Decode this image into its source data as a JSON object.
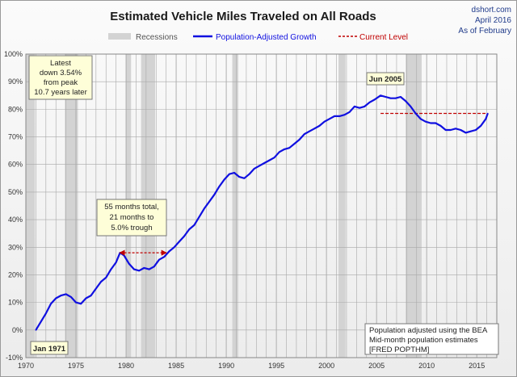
{
  "source": {
    "site": "dshort.com",
    "date": "April 2016",
    "as_of": "As of February"
  },
  "chart_data": {
    "type": "line",
    "title": "Estimated Vehicle Miles Traveled on All Roads",
    "xlabel": "",
    "ylabel": "",
    "xlim": [
      1970,
      2017
    ],
    "ylim": [
      -10,
      100
    ],
    "y_ticks": [
      -10,
      0,
      10,
      20,
      30,
      40,
      50,
      60,
      70,
      80,
      90,
      100
    ],
    "y_tick_labels": [
      "-10%",
      "0%",
      "10%",
      "20%",
      "30%",
      "40%",
      "50%",
      "60%",
      "70%",
      "80%",
      "90%",
      "100%"
    ],
    "x_ticks": [
      1970,
      1975,
      1980,
      1985,
      1990,
      1995,
      2000,
      2005,
      2010,
      2015
    ],
    "x_tick_labels": [
      "1970",
      "1975",
      "1980",
      "1985",
      "1990",
      "1995",
      "2000",
      "2005",
      "2010",
      "2015"
    ],
    "grid": true,
    "legend": {
      "placement": "top",
      "entries": [
        {
          "label": "Recessions",
          "color": "#d3d3d3",
          "style": "band"
        },
        {
          "label": "Population-Adjusted Growth",
          "color": "#1010e0",
          "style": "line"
        },
        {
          "label": "Current Level",
          "color": "#c00000",
          "style": "dashed"
        }
      ]
    },
    "recessions": [
      [
        1970.0,
        1970.9
      ],
      [
        1973.9,
        1975.2
      ],
      [
        1980.0,
        1980.5
      ],
      [
        1981.5,
        1982.9
      ],
      [
        1990.6,
        1991.2
      ],
      [
        2001.2,
        2001.9
      ],
      [
        2007.9,
        2009.5
      ]
    ],
    "series": [
      {
        "name": "Population-Adjusted Growth",
        "color": "#1010e0",
        "x": [
          1971.0,
          1971.5,
          1972.0,
          1972.5,
          1973.0,
          1973.5,
          1974.0,
          1974.5,
          1975.0,
          1975.5,
          1976.0,
          1976.5,
          1977.0,
          1977.5,
          1978.0,
          1978.5,
          1979.0,
          1979.4,
          1979.8,
          1980.3,
          1980.8,
          1981.3,
          1981.8,
          1982.3,
          1982.8,
          1983.3,
          1983.8,
          1984.3,
          1984.8,
          1985.3,
          1985.8,
          1986.3,
          1986.8,
          1987.3,
          1987.8,
          1988.3,
          1988.8,
          1989.3,
          1989.8,
          1990.3,
          1990.8,
          1991.3,
          1991.8,
          1992.3,
          1992.8,
          1993.3,
          1993.8,
          1994.3,
          1994.8,
          1995.3,
          1995.8,
          1996.3,
          1996.8,
          1997.3,
          1997.8,
          1998.3,
          1998.8,
          1999.3,
          1999.8,
          2000.3,
          2000.8,
          2001.3,
          2001.8,
          2002.3,
          2002.8,
          2003.3,
          2003.8,
          2004.3,
          2004.8,
          2005.4,
          2005.9,
          2006.4,
          2006.9,
          2007.4,
          2007.9,
          2008.4,
          2008.9,
          2009.4,
          2009.9,
          2010.4,
          2010.9,
          2011.4,
          2011.9,
          2012.4,
          2012.9,
          2013.4,
          2013.9,
          2014.4,
          2014.9,
          2015.4,
          2015.9,
          2016.1
        ],
        "values": [
          0.0,
          3.0,
          6.0,
          9.5,
          11.5,
          12.5,
          13.0,
          12.0,
          10.0,
          9.5,
          11.5,
          12.5,
          15.0,
          17.5,
          19.0,
          22.0,
          24.5,
          28.0,
          27.0,
          24.0,
          22.0,
          21.5,
          22.5,
          22.0,
          23.0,
          25.5,
          26.5,
          28.5,
          30.0,
          32.0,
          34.0,
          36.5,
          38.0,
          41.0,
          44.0,
          46.5,
          49.0,
          52.0,
          54.5,
          56.5,
          57.0,
          55.5,
          55.0,
          56.5,
          58.5,
          59.5,
          60.5,
          61.5,
          62.5,
          64.5,
          65.5,
          66.0,
          67.5,
          69.0,
          71.0,
          72.0,
          73.0,
          74.0,
          75.5,
          76.5,
          77.5,
          77.5,
          78.0,
          79.0,
          81.0,
          80.5,
          81.0,
          82.5,
          83.5,
          85.0,
          84.5,
          84.0,
          84.0,
          84.5,
          83.0,
          81.0,
          78.5,
          76.5,
          75.5,
          75.0,
          75.0,
          74.0,
          72.5,
          72.5,
          73.0,
          72.5,
          71.5,
          72.0,
          72.5,
          74.0,
          76.5,
          78.5
        ]
      }
    ],
    "current_level": {
      "value": 78.5,
      "x_start": 2005.4,
      "x_end": 2016.1
    },
    "annotations": {
      "latest": [
        "Latest",
        "down 3.54%",
        "from peak",
        "10.7 years later"
      ],
      "dip": [
        "55 months total,",
        "21 months to",
        "5.0% trough"
      ],
      "dip_arrow": {
        "x_start": 1979.4,
        "x_end": 1984.0,
        "y": 28.0
      },
      "peak_label": "Jun 2005",
      "start_label": "Jan 1971",
      "note": [
        "Population adjusted using the BEA",
        "Mid-month population estimates",
        "[FRED POPTHM]"
      ]
    }
  }
}
